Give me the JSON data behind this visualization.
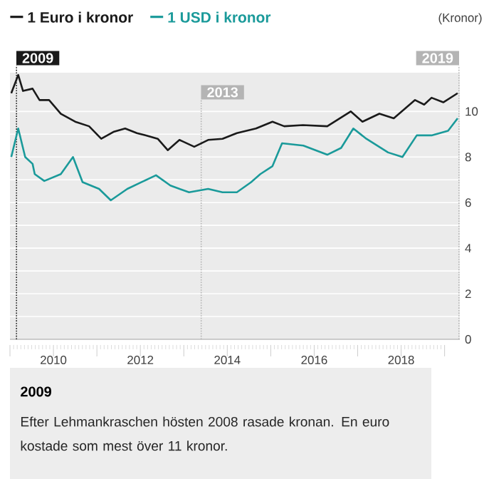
{
  "chart_data": {
    "type": "line",
    "ylabel": "(Kronor)",
    "x": [
      2009.03,
      2009.19,
      2009.3,
      2009.52,
      2009.68,
      2009.9,
      2010.17,
      2010.5,
      2010.82,
      2011.1,
      2011.38,
      2011.65,
      2011.92,
      2012.13,
      2012.4,
      2012.63,
      2012.9,
      2013.24,
      2013.56,
      2013.89,
      2014.22,
      2014.66,
      2015.04,
      2015.31,
      2015.74,
      2016.3,
      2016.84,
      2017.11,
      2017.5,
      2017.83,
      2018.32,
      2018.53,
      2018.7,
      2018.97,
      2019.3
    ],
    "series": [
      {
        "name": "1 Euro i kronor",
        "color": "#1a1a1a",
        "values": [
          10.8,
          11.6,
          10.9,
          11.0,
          10.5,
          10.5,
          9.9,
          9.55,
          9.35,
          8.8,
          9.1,
          9.25,
          9.05,
          8.95,
          8.8,
          8.3,
          8.75,
          8.45,
          8.75,
          8.8,
          9.05,
          9.25,
          9.55,
          9.35,
          9.4,
          9.35,
          10.0,
          9.55,
          9.9,
          9.7,
          10.5,
          10.3,
          10.6,
          10.4,
          10.8
        ]
      },
      {
        "name": "1 USD i kronor",
        "color": "#1a9a9a",
        "x": [
          2009.03,
          2009.19,
          2009.35,
          2009.52,
          2009.57,
          2009.79,
          2010.17,
          2010.45,
          2010.67,
          2011.05,
          2011.32,
          2011.7,
          2012.03,
          2012.36,
          2012.69,
          2013.12,
          2013.56,
          2013.89,
          2014.22,
          2014.55,
          2014.76,
          2015.04,
          2015.26,
          2015.75,
          2016.3,
          2016.62,
          2016.9,
          2017.2,
          2017.7,
          2018.03,
          2018.36,
          2018.7,
          2019.08,
          2019.3
        ],
        "values": [
          8.0,
          9.25,
          8.0,
          7.7,
          7.25,
          6.95,
          7.25,
          8.0,
          6.9,
          6.6,
          6.1,
          6.6,
          6.9,
          7.2,
          6.75,
          6.45,
          6.6,
          6.45,
          6.45,
          6.9,
          7.25,
          7.6,
          8.6,
          8.5,
          8.1,
          8.4,
          9.25,
          8.8,
          8.2,
          8.0,
          8.95,
          8.95,
          9.15,
          9.7
        ]
      }
    ],
    "xlim": [
      2009,
      2019.35
    ],
    "xticks": [
      {
        "value": 2009,
        "label": null
      },
      {
        "value": 2010,
        "label": "2010"
      },
      {
        "value": 2011,
        "label": null
      },
      {
        "value": 2012,
        "label": "2012"
      },
      {
        "value": 2013,
        "label": null
      },
      {
        "value": 2014,
        "label": "2014"
      },
      {
        "value": 2015,
        "label": null
      },
      {
        "value": 2016,
        "label": "2016"
      },
      {
        "value": 2017,
        "label": null
      },
      {
        "value": 2018,
        "label": "2018"
      },
      {
        "value": 2019,
        "label": null
      }
    ],
    "ylim": [
      0,
      11.7
    ],
    "yticks": [
      0,
      {
        "value": 1,
        "label": null
      },
      2,
      {
        "value": 3,
        "label": null
      },
      4,
      {
        "value": 5,
        "label": null
      },
      6,
      {
        "value": 7,
        "label": null
      },
      8,
      {
        "value": 9,
        "label": null
      },
      10
    ],
    "grid": "y",
    "legend": "top left",
    "marker": "none",
    "line_style": "solid",
    "ref_lines": [
      {
        "axis": "x",
        "value": 2009.15,
        "label": "2009",
        "color": "#1a1a1a",
        "line_style": "dotted"
      },
      {
        "axis": "x",
        "value": 2013.4,
        "label": "2013",
        "color": "#b4b4b4",
        "line_style": "dotted"
      },
      {
        "axis": "x",
        "value": 2019.33,
        "label": "2019",
        "color": "#b4b4b4",
        "line_style": "dotted"
      }
    ],
    "annotations": [
      "2009",
      "Efter Lehmankraschen hösten 2008 rasade kronan. En euro kostade som mest över 11 kronor."
    ]
  }
}
